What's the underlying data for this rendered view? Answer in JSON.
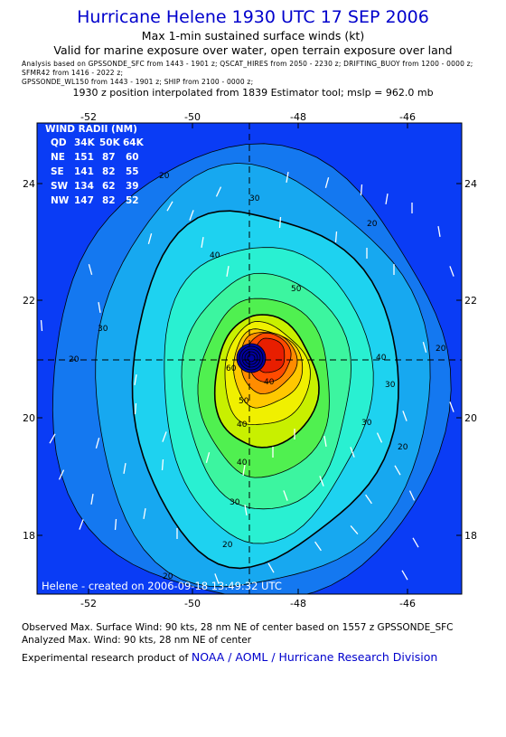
{
  "header": {
    "title": "Hurricane Helene 1930 UTC 17 SEP 2006",
    "subtitle": "Max 1-min sustained surface winds (kt)",
    "validity": "Valid for marine exposure over water, open terrain exposure over land",
    "sources": [
      "Analysis based on   GPSSONDE_SFC  from  1443 - 1901 z;   QSCAT_HIRES  from  2050 - 2230 z;   DRIFTING_BUOY  from  1200 - 0000 z;",
      "SFMR42  from  1416 - 2022 z;",
      "GPSSONDE_WL150  from  1443 - 1901 z;   SHIP  from  2100 - 0000 z;"
    ],
    "position_note": "1930 z position interpolated from 1839 Estimator tool; mslp = 962.0 mb"
  },
  "map": {
    "lon_ticks": [
      "-52",
      "-50",
      "-48",
      "-46"
    ],
    "lat_ticks": [
      "24",
      "22",
      "20",
      "18"
    ],
    "wind_radii": {
      "title": "WIND RADII (NM)",
      "header": [
        "QD",
        "34K",
        "50K",
        "64K"
      ],
      "rows": [
        [
          "NE",
          "151",
          "87",
          "60"
        ],
        [
          "SE",
          "141",
          "82",
          "55"
        ],
        [
          "SW",
          "134",
          "62",
          "39"
        ],
        [
          "NW",
          "147",
          "82",
          "52"
        ]
      ]
    },
    "contour_labels": [
      "20",
      "20",
      "20",
      "30",
      "30",
      "30",
      "30",
      "40",
      "40",
      "40",
      "50",
      "50",
      "60",
      "20",
      "20",
      "20",
      "20",
      "30",
      "40",
      "40"
    ],
    "credit": "Helene  -  created  on  2006-09-18  13:49:32  UTC",
    "colors": {
      "level_fill": [
        "#0a3cf5",
        "#1478f0",
        "#17a8f0",
        "#1ed2f0",
        "#29f0d2",
        "#3cf5a0",
        "#50f050",
        "#c8f000",
        "#f0f000",
        "#ffc800",
        "#ff8c00",
        "#ff4a00",
        "#e81e00"
      ],
      "eye_wall": "#0000a0"
    }
  },
  "footer": {
    "observed": "Observed Max. Surface Wind: 90 kts, 28 nm NE of center based on 1557 z GPSSONDE_SFC",
    "analyzed": "Analyzed Max. Wind: 90 kts, 28 nm NE of center",
    "credit_prefix": "Experimental research product of",
    "org": "NOAA / AOML / Hurricane Research Division"
  }
}
